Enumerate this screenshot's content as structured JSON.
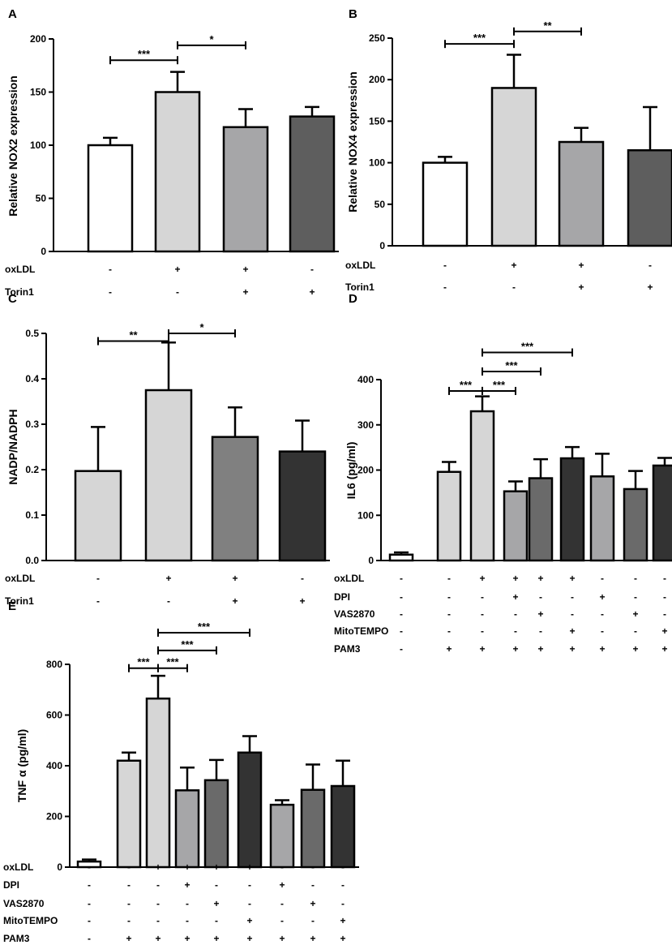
{
  "chart_data": [
    {
      "panel": "A",
      "type": "bar",
      "ylabel": "Relative NOX2 expression",
      "ylim": [
        0,
        200
      ],
      "yticks": [
        0,
        50,
        100,
        150,
        200
      ],
      "values": [
        100,
        150,
        117,
        127
      ],
      "errors": [
        7,
        19,
        17,
        9
      ],
      "colors": [
        "#ffffff",
        "#d6d6d6",
        "#a6a6a8",
        "#5e5e5e"
      ],
      "conditions": [
        {
          "label": "oxLDL",
          "marks": [
            "-",
            "+",
            "+",
            "-"
          ]
        },
        {
          "label": "Torin1",
          "marks": [
            "-",
            "-",
            "+",
            "+"
          ]
        }
      ],
      "significance": [
        {
          "from": 0,
          "to": 1,
          "y": 180,
          "label": "***"
        },
        {
          "from": 1,
          "to": 2,
          "y": 194,
          "label": "*"
        }
      ]
    },
    {
      "panel": "B",
      "type": "bar",
      "ylabel": "Relative NOX4 expression",
      "ylim": [
        0,
        250
      ],
      "yticks": [
        0,
        50,
        100,
        150,
        200,
        250
      ],
      "values": [
        100,
        190,
        125,
        115
      ],
      "errors": [
        7,
        40,
        17,
        52
      ],
      "colors": [
        "#ffffff",
        "#d6d6d6",
        "#a6a6a8",
        "#5e5e5e"
      ],
      "conditions": [
        {
          "label": "oxLDL",
          "marks": [
            "-",
            "+",
            "+",
            "-"
          ]
        },
        {
          "label": "Torin1",
          "marks": [
            "-",
            "-",
            "+",
            "+"
          ]
        }
      ],
      "significance": [
        {
          "from": 0,
          "to": 1,
          "y": 243,
          "label": "***"
        },
        {
          "from": 1,
          "to": 2,
          "y": 258,
          "label": "**"
        }
      ]
    },
    {
      "panel": "C",
      "type": "bar",
      "ylabel": "NADP/NADPH",
      "ylim": [
        0,
        0.5
      ],
      "yticks": [
        "0.0",
        "0.1",
        "0.2",
        "0.3",
        "0.4",
        "0.5"
      ],
      "values": [
        0.197,
        0.375,
        0.272,
        0.24
      ],
      "errors": [
        0.097,
        0.105,
        0.065,
        0.068
      ],
      "colors": [
        "#d6d6d6",
        "#d6d6d6",
        "#808080",
        "#333333"
      ],
      "conditions": [
        {
          "label": "oxLDL",
          "marks": [
            "-",
            "+",
            "+",
            "-"
          ]
        },
        {
          "label": "Torin1",
          "marks": [
            "-",
            "-",
            "+",
            "+"
          ]
        }
      ],
      "significance": [
        {
          "from": 0,
          "to": 1,
          "y": 0.483,
          "label": "**"
        },
        {
          "from": 1,
          "to": 2,
          "y": 0.5,
          "label": "*"
        }
      ]
    },
    {
      "panel": "D",
      "type": "bar",
      "ylabel": "IL6 (pg/ml)",
      "ylim": [
        0,
        400
      ],
      "yticks": [
        0,
        100,
        200,
        300,
        400
      ],
      "values": [
        13,
        196,
        330,
        153,
        182,
        226,
        186,
        158,
        210
      ],
      "errors": [
        5,
        22,
        33,
        22,
        42,
        25,
        50,
        40,
        17
      ],
      "colors": [
        "#ffffff",
        "#d6d6d6",
        "#d6d6d6",
        "#a6a6a8",
        "#6a6a6a",
        "#333333",
        "#a6a6a8",
        "#6a6a6a",
        "#333333"
      ],
      "conditions": [
        {
          "label": "oxLDL",
          "marks": [
            "-",
            "-",
            "+",
            "+",
            "+",
            "+",
            "-",
            "-",
            "-"
          ]
        },
        {
          "label": "DPI",
          "marks": [
            "-",
            "-",
            "-",
            "+",
            "-",
            "-",
            "+",
            "-",
            "-"
          ]
        },
        {
          "label": "VAS2870",
          "marks": [
            "-",
            "-",
            "-",
            "-",
            "+",
            "-",
            "-",
            "+",
            "-"
          ]
        },
        {
          "label": "MitoTEMPO",
          "marks": [
            "-",
            "-",
            "-",
            "-",
            "-",
            "+",
            "-",
            "-",
            "+"
          ]
        },
        {
          "label": "PAM3",
          "marks": [
            "-",
            "+",
            "+",
            "+",
            "+",
            "+",
            "+",
            "+",
            "+"
          ]
        }
      ],
      "significance": [
        {
          "from": 1,
          "to": 2,
          "y": 375,
          "label": "***"
        },
        {
          "from": 2,
          "to": 3,
          "y": 375,
          "label": "***"
        },
        {
          "from": 2,
          "to": 4,
          "y": 418,
          "label": "***"
        },
        {
          "from": 2,
          "to": 5,
          "y": 460,
          "label": "***"
        }
      ]
    },
    {
      "panel": "E",
      "type": "bar",
      "ylabel": "TNF α  (pg/ml)",
      "ylim": [
        0,
        800
      ],
      "yticks": [
        0,
        200,
        400,
        600,
        800
      ],
      "values": [
        22,
        420,
        665,
        303,
        343,
        452,
        246,
        305,
        320
      ],
      "errors": [
        8,
        32,
        90,
        90,
        80,
        65,
        18,
        100,
        100
      ],
      "colors": [
        "#ffffff",
        "#d6d6d6",
        "#d6d6d6",
        "#a6a6a8",
        "#6a6a6a",
        "#333333",
        "#a6a6a8",
        "#6a6a6a",
        "#333333"
      ],
      "conditions": [
        {
          "label": "oxLDL",
          "marks": [
            "-",
            "-",
            "+",
            "+",
            "+",
            "+",
            "-",
            "-",
            "-"
          ]
        },
        {
          "label": "DPI",
          "marks": [
            "-",
            "-",
            "-",
            "+",
            "-",
            "-",
            "+",
            "-",
            "-"
          ]
        },
        {
          "label": "VAS2870",
          "marks": [
            "-",
            "-",
            "-",
            "-",
            "+",
            "-",
            "-",
            "+",
            "-"
          ]
        },
        {
          "label": "MitoTEMPO",
          "marks": [
            "-",
            "-",
            "-",
            "-",
            "-",
            "+",
            "-",
            "-",
            "+"
          ]
        },
        {
          "label": "PAM3",
          "marks": [
            "-",
            "+",
            "+",
            "+",
            "+",
            "+",
            "+",
            "+",
            "+"
          ]
        }
      ],
      "significance": [
        {
          "from": 1,
          "to": 2,
          "y": 785,
          "label": "***"
        },
        {
          "from": 2,
          "to": 3,
          "y": 785,
          "label": "***"
        },
        {
          "from": 2,
          "to": 4,
          "y": 855,
          "label": "***"
        },
        {
          "from": 2,
          "to": 5,
          "y": 925,
          "label": "***"
        }
      ]
    }
  ]
}
